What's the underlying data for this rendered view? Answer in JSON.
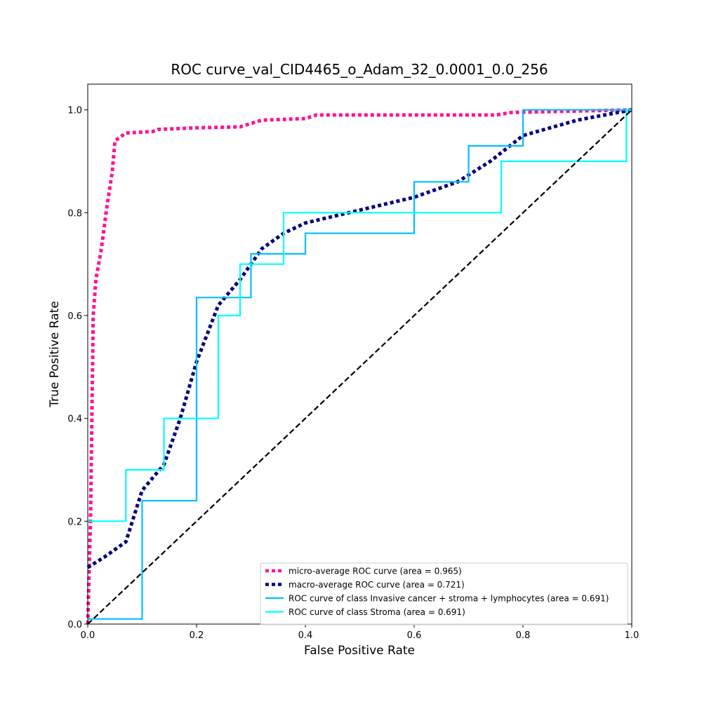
{
  "chart_data": {
    "type": "line",
    "title": "ROC curve_val_CID4465_o_Adam_32_0.0001_0.0_256",
    "xlabel": "False Positive Rate",
    "ylabel": "True Positive Rate",
    "xlim": [
      0.0,
      1.0
    ],
    "ylim": [
      0.0,
      1.05
    ],
    "x_ticks": [
      "0.0",
      "0.2",
      "0.4",
      "0.6",
      "0.8",
      "1.0"
    ],
    "y_ticks": [
      "0.0",
      "0.2",
      "0.4",
      "0.6",
      "0.8",
      "1.0"
    ],
    "grid": false,
    "legend_position": "lower-right",
    "series": [
      {
        "name": "micro-average ROC curve (area = 0.965)",
        "color": "#ff1493",
        "style": "dotted",
        "points": [
          [
            0.0,
            0.0
          ],
          [
            0.005,
            0.2
          ],
          [
            0.01,
            0.6
          ],
          [
            0.015,
            0.67
          ],
          [
            0.025,
            0.73
          ],
          [
            0.035,
            0.81
          ],
          [
            0.045,
            0.88
          ],
          [
            0.05,
            0.94
          ],
          [
            0.07,
            0.955
          ],
          [
            0.12,
            0.958
          ],
          [
            0.13,
            0.962
          ],
          [
            0.2,
            0.965
          ],
          [
            0.28,
            0.967
          ],
          [
            0.32,
            0.98
          ],
          [
            0.4,
            0.983
          ],
          [
            0.42,
            0.99
          ],
          [
            0.75,
            0.99
          ],
          [
            0.78,
            0.995
          ],
          [
            1.0,
            1.0
          ]
        ]
      },
      {
        "name": "macro-average ROC curve (area = 0.721)",
        "color": "#000080",
        "style": "dotted",
        "points": [
          [
            0.0,
            0.11
          ],
          [
            0.03,
            0.13
          ],
          [
            0.07,
            0.16
          ],
          [
            0.1,
            0.26
          ],
          [
            0.14,
            0.31
          ],
          [
            0.17,
            0.4
          ],
          [
            0.2,
            0.51
          ],
          [
            0.24,
            0.62
          ],
          [
            0.28,
            0.67
          ],
          [
            0.32,
            0.73
          ],
          [
            0.36,
            0.76
          ],
          [
            0.4,
            0.78
          ],
          [
            0.48,
            0.8
          ],
          [
            0.6,
            0.83
          ],
          [
            0.68,
            0.86
          ],
          [
            0.74,
            0.9
          ],
          [
            0.8,
            0.95
          ],
          [
            0.9,
            0.98
          ],
          [
            1.0,
            1.0
          ]
        ]
      },
      {
        "name": "ROC curve of class Invasive cancer + stroma + lymphocytes (area = 0.691)",
        "color": "#00bfff",
        "style": "solid",
        "points": [
          [
            0.0,
            0.01
          ],
          [
            0.1,
            0.01
          ],
          [
            0.1,
            0.24
          ],
          [
            0.2,
            0.24
          ],
          [
            0.2,
            0.635
          ],
          [
            0.3,
            0.635
          ],
          [
            0.3,
            0.72
          ],
          [
            0.4,
            0.72
          ],
          [
            0.4,
            0.76
          ],
          [
            0.6,
            0.76
          ],
          [
            0.6,
            0.86
          ],
          [
            0.7,
            0.86
          ],
          [
            0.7,
            0.93
          ],
          [
            0.8,
            0.93
          ],
          [
            0.8,
            1.0
          ],
          [
            1.0,
            1.0
          ]
        ]
      },
      {
        "name": "ROC curve of class Stroma (area = 0.691)",
        "color": "#00ffff",
        "style": "solid",
        "points": [
          [
            0.0,
            0.2
          ],
          [
            0.07,
            0.2
          ],
          [
            0.07,
            0.3
          ],
          [
            0.14,
            0.3
          ],
          [
            0.14,
            0.4
          ],
          [
            0.24,
            0.4
          ],
          [
            0.24,
            0.6
          ],
          [
            0.28,
            0.6
          ],
          [
            0.28,
            0.7
          ],
          [
            0.36,
            0.7
          ],
          [
            0.36,
            0.8
          ],
          [
            0.76,
            0.8
          ],
          [
            0.76,
            0.9
          ],
          [
            0.99,
            0.9
          ],
          [
            0.99,
            1.0
          ],
          [
            1.0,
            1.0
          ]
        ]
      },
      {
        "color": "#000000",
        "style": "dashed",
        "points": [
          [
            0.0,
            0.0
          ],
          [
            1.0,
            1.0
          ]
        ]
      }
    ]
  }
}
